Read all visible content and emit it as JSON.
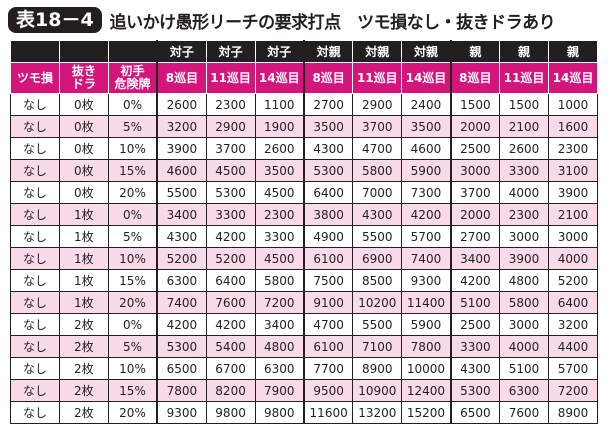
{
  "title": {
    "badge": "表18－4",
    "text": "追いかけ愚形リーチの要求打点　ツモ損なし・抜きドラあり"
  },
  "header_top": [
    "",
    "",
    "",
    "対子",
    "対子",
    "対子",
    "対親",
    "対親",
    "対親",
    "親",
    "親",
    "親"
  ],
  "header_sub": [
    "ツモ損",
    "抜き\nドラ",
    "初手\n危険牌",
    "8巡目",
    "11巡目",
    "14巡目",
    "8巡目",
    "11巡目",
    "14巡目",
    "8巡目",
    "11巡目",
    "14巡目"
  ],
  "rows": [
    [
      "なし",
      "0枚",
      "0%",
      "2600",
      "2300",
      "1100",
      "2700",
      "2900",
      "2400",
      "1500",
      "1500",
      "1000"
    ],
    [
      "なし",
      "0枚",
      "5%",
      "3200",
      "2900",
      "1900",
      "3500",
      "3700",
      "3500",
      "2000",
      "2100",
      "1600"
    ],
    [
      "なし",
      "0枚",
      "10%",
      "3900",
      "3700",
      "2600",
      "4300",
      "4700",
      "4600",
      "2500",
      "2600",
      "2300"
    ],
    [
      "なし",
      "0枚",
      "15%",
      "4600",
      "4500",
      "3500",
      "5300",
      "5800",
      "5900",
      "3000",
      "3300",
      "3100"
    ],
    [
      "なし",
      "0枚",
      "20%",
      "5500",
      "5300",
      "4500",
      "6400",
      "7000",
      "7300",
      "3700",
      "4000",
      "3900"
    ],
    [
      "なし",
      "1枚",
      "0%",
      "3400",
      "3300",
      "2300",
      "3800",
      "4300",
      "4200",
      "2000",
      "2300",
      "2100"
    ],
    [
      "なし",
      "1枚",
      "5%",
      "4300",
      "4200",
      "3300",
      "4900",
      "5500",
      "5700",
      "2700",
      "3000",
      "3000"
    ],
    [
      "なし",
      "1枚",
      "10%",
      "5200",
      "5200",
      "4500",
      "6100",
      "6900",
      "7400",
      "3400",
      "3900",
      "4000"
    ],
    [
      "なし",
      "1枚",
      "15%",
      "6300",
      "6400",
      "5800",
      "7500",
      "8500",
      "9300",
      "4200",
      "4800",
      "5200"
    ],
    [
      "なし",
      "1枚",
      "20%",
      "7400",
      "7600",
      "7200",
      "9100",
      "10200",
      "11400",
      "5100",
      "5800",
      "6400"
    ],
    [
      "なし",
      "2枚",
      "0%",
      "4200",
      "4200",
      "3400",
      "4700",
      "5500",
      "5900",
      "2500",
      "3000",
      "3200"
    ],
    [
      "なし",
      "2枚",
      "5%",
      "5300",
      "5400",
      "4800",
      "6100",
      "7100",
      "7800",
      "3300",
      "4000",
      "4400"
    ],
    [
      "なし",
      "2枚",
      "10%",
      "6500",
      "6700",
      "6300",
      "7700",
      "8900",
      "10000",
      "4300",
      "5100",
      "5700"
    ],
    [
      "なし",
      "2枚",
      "15%",
      "7800",
      "8200",
      "7900",
      "9500",
      "10900",
      "12400",
      "5300",
      "6300",
      "7200"
    ],
    [
      "なし",
      "2枚",
      "20%",
      "9300",
      "9800",
      "9800",
      "11600",
      "13200",
      "15200",
      "6500",
      "7600",
      "8900"
    ]
  ],
  "colors": {
    "header_dark": "#231f20",
    "header_magenta": "#d4157c",
    "row_pink": "#f9dbe8"
  }
}
